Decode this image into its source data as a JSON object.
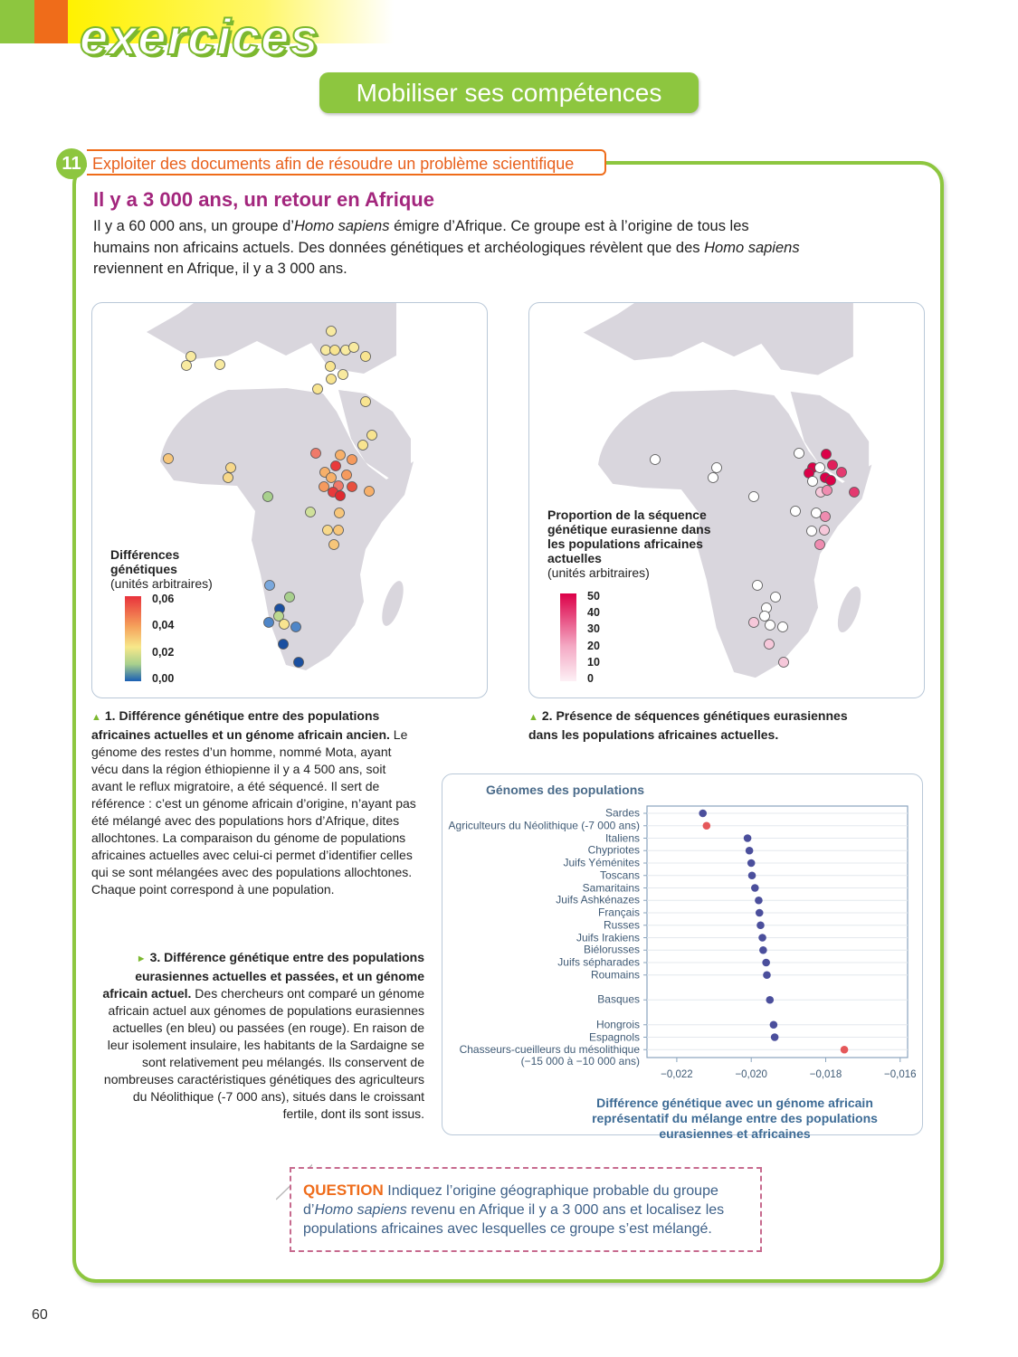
{
  "header": {
    "section": "exercices",
    "subtitle": "Mobiliser ses compétences"
  },
  "exercise": {
    "number": "11",
    "skill": "Exploiter des documents afin de résoudre un problème scientifique",
    "title": "Il y a 3 000 ans, un retour en Afrique",
    "intro": [
      "Il y a 60 000 ans, un groupe d’",
      {
        "i": "Homo sapiens"
      },
      " émigre d’Afrique. Ce groupe est à l’origine de tous les humains non africains actuels. Des données génétiques et archéologiques révèlent que des ",
      {
        "i": "Homo sapiens"
      },
      " reviennent en Afrique, il y a 3 000 ans."
    ]
  },
  "doc1": {
    "legend_title": "Différences génétiques",
    "legend_unit": "(unités arbitraires)",
    "legend_labels": [
      "0,06",
      "0,04",
      "0,02",
      "0,00"
    ],
    "caption": [
      {
        "b": "1. Différence génétique entre des populations africaines actuelles et un génome africain ancien."
      },
      " Le génome des restes d’un homme, nommé Mota, ayant vécu dans la région éthiopienne il y a 4 500 ans, soit avant le reflux migratoire, a été séquencé. Il sert de référence : c’est un génome africain d’origine, n’ayant pas été mélangé avec des populations hors d’Afrique, dites allochtones. La comparaison du génome de populations africaines actuelles avec celui-ci permet d’identifier celles qui se sont mélangées avec des populations allochtones. Chaque point correspond à une population."
    ]
  },
  "doc2": {
    "legend_title": "Proportion de la séquence génétique eurasienne dans les populations africaines actuelles",
    "legend_unit": "(unités arbitraires)",
    "legend_labels": [
      "50",
      "40",
      "30",
      "20",
      "10",
      "0"
    ],
    "caption": [
      {
        "b": "2. Présence de séquences génétiques eurasiennes dans les populations africaines actuelles."
      }
    ]
  },
  "doc3": {
    "caption": [
      {
        "b": "3. Différence génétique entre des populations eurasiennes actuelles et passées, et un génome africain actuel."
      },
      " Des chercheurs ont comparé un génome africain actuel aux génomes de populations eurasiennes actuelles (en bleu) ou passées (en rouge). En raison de leur isolement insulaire, les habitants de la Sardaigne se sont relativement peu mélangés. Ils conservent de nombreuses caractéristiques génétiques des agriculteurs du Néolithique (-7 000 ans), situés dans le croissant fertile, dont ils sont issus."
    ]
  },
  "chart_data": {
    "type": "dot",
    "title": "Génomes des populations",
    "x_label": "Différence génétique avec un génome africain représentatif du mélange entre des populations eurasiennes et africaines",
    "categories": [
      "Sardes",
      "Agriculteurs du Néolithique (-7 000 ans)",
      "Italiens",
      "Chypriotes",
      "Juifs Yéménites",
      "Toscans",
      "Samaritains",
      "Juifs Ashkénazes",
      "Français",
      "Russes",
      "Juifs Irakiens",
      "Biélorusses",
      "Juifs sépharades",
      "Roumains",
      null,
      "Basques",
      null,
      "Hongrois",
      "Espagnols",
      "Chasseurs-cueilleurs du mésolithique\n(−15 000 à −10 000 ans)"
    ],
    "values": [
      -0.0213,
      -0.0212,
      -0.0201,
      -0.02005,
      -0.02,
      -0.01998,
      -0.0199,
      -0.0198,
      -0.01978,
      -0.01975,
      -0.0197,
      -0.01968,
      -0.0196,
      -0.01958,
      null,
      -0.0195,
      null,
      -0.0194,
      -0.01937,
      -0.0175
    ],
    "point_colors": [
      "#4b4f9c",
      "#e5585a",
      "#4b4f9c",
      "#4b4f9c",
      "#4b4f9c",
      "#4b4f9c",
      "#4b4f9c",
      "#4b4f9c",
      "#4b4f9c",
      "#4b4f9c",
      "#4b4f9c",
      "#4b4f9c",
      "#4b4f9c",
      "#4b4f9c",
      null,
      "#4b4f9c",
      null,
      "#4b4f9c",
      "#4b4f9c",
      "#e5585a"
    ],
    "xlim": [
      -0.0228,
      -0.0158
    ],
    "xticks": [
      {
        "value": -0.022,
        "label": "−0,022"
      },
      {
        "value": -0.02,
        "label": "−0,020"
      },
      {
        "value": -0.018,
        "label": "−0,018"
      },
      {
        "value": -0.016,
        "label": "−0,016"
      }
    ],
    "grid": true
  },
  "question": {
    "label": "QUESTION",
    "text": [
      " Indiquez l’origine géographique probable du groupe d’",
      {
        "i": "Homo sapiens"
      },
      " revenu en Afrique il y a 3 000 ans et localisez les populations africaines avec lesquelles ce groupe s’est mélangé."
    ]
  },
  "page_number": "60"
}
